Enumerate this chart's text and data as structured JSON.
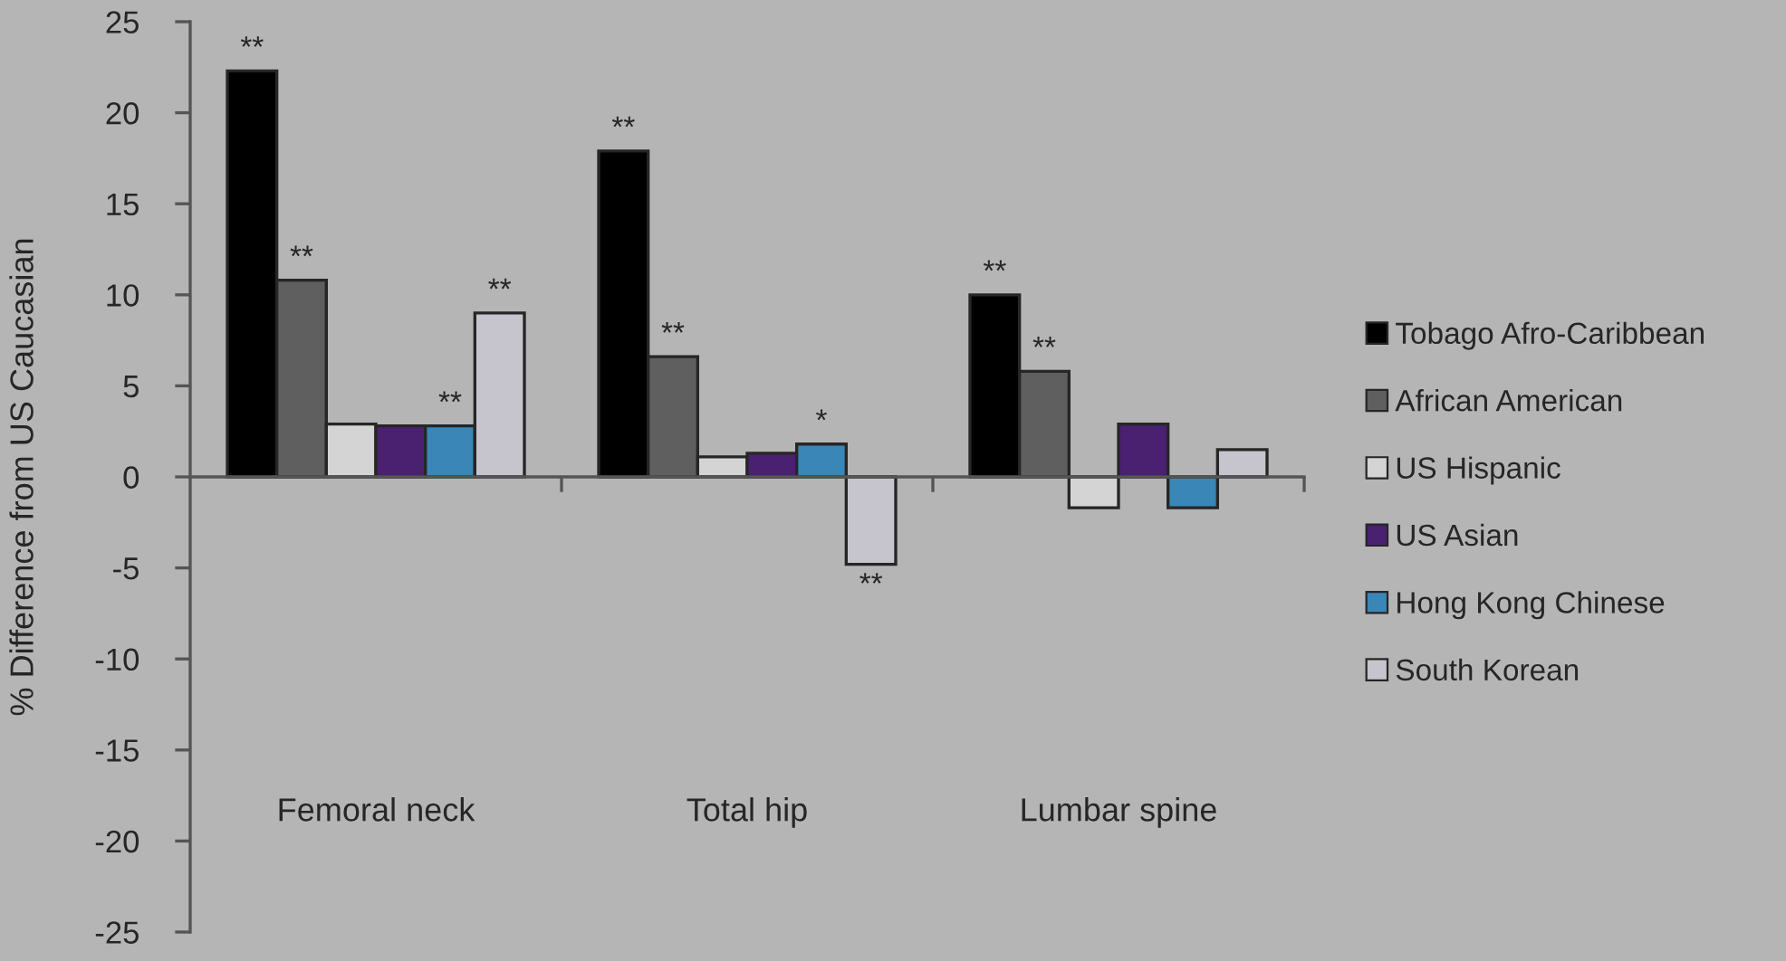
{
  "chart_data": {
    "type": "bar",
    "ylabel": "% Difference from US Caucasian",
    "categories": [
      "Femoral neck",
      "Total hip",
      "Lumbar spine"
    ],
    "series": [
      {
        "name": "Tobago Afro-Caribbean",
        "color": "#000000",
        "values": [
          22.3,
          17.9,
          10.0
        ],
        "value_labels": [
          "**",
          "**",
          "**"
        ]
      },
      {
        "name": "African American",
        "color": "#5f5f5f",
        "values": [
          10.8,
          6.6,
          5.8
        ],
        "value_labels": [
          "**",
          "**",
          "**"
        ]
      },
      {
        "name": "US Hispanic",
        "color": "#d4d4d4",
        "values": [
          2.9,
          1.1,
          -1.7
        ],
        "value_labels": [
          null,
          null,
          null
        ]
      },
      {
        "name": "US Asian",
        "color": "#4a2070",
        "values": [
          2.8,
          1.3,
          2.9
        ],
        "value_labels": [
          null,
          null,
          null
        ]
      },
      {
        "name": "Hong Kong Chinese",
        "color": "#3a86b6",
        "values": [
          2.8,
          1.8,
          -1.7
        ],
        "value_labels": [
          "**",
          "*",
          null
        ]
      },
      {
        "name": "South Korean",
        "color": "#c6c4cc",
        "values": [
          9.0,
          -4.8,
          1.5
        ],
        "value_labels": [
          "**",
          "**",
          null
        ]
      }
    ],
    "ylim": [
      -25,
      25
    ],
    "yticks": [
      -25,
      -20,
      -15,
      -10,
      -5,
      0,
      5,
      10,
      15,
      20,
      25
    ],
    "legend": "right"
  }
}
